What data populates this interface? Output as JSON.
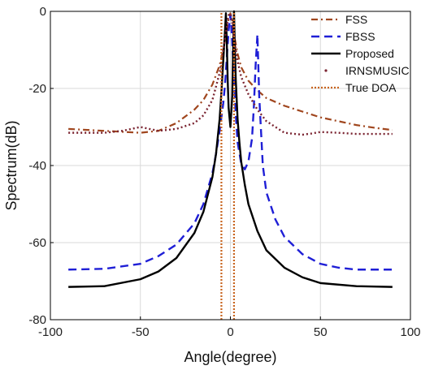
{
  "chart_data": {
    "type": "line",
    "xlabel": "Angle(degree)",
    "ylabel": "Spectrum(dB)",
    "xlim": [
      -100,
      100
    ],
    "ylim": [
      -80,
      0
    ],
    "xticks": [
      -100,
      -50,
      0,
      50,
      100
    ],
    "yticks": [
      0,
      -20,
      -40,
      -60,
      -80
    ],
    "xtick_labels": [
      "-100",
      "-50",
      "0",
      "50",
      "100"
    ],
    "ytick_labels": [
      "0",
      "-20",
      "-40",
      "-60",
      "-80"
    ],
    "grid": true,
    "legend_position": "top-right",
    "series": [
      {
        "name": "FSS",
        "color": "#a0461e",
        "style": "dashdot",
        "x": [
          -90,
          -70,
          -50,
          -40,
          -30,
          -20,
          -15,
          -10,
          -6,
          -4,
          -2,
          -1,
          0,
          1,
          2,
          4,
          6,
          10,
          15,
          20,
          30,
          40,
          50,
          60,
          70,
          80,
          90
        ],
        "y": [
          -30.5,
          -31.0,
          -31.5,
          -31.0,
          -29.0,
          -25.5,
          -23.0,
          -19.0,
          -14.0,
          -10.0,
          -5.0,
          -2.0,
          -0.5,
          -2.5,
          -6.0,
          -11.0,
          -14.5,
          -18.0,
          -20.5,
          -22.5,
          -24.5,
          -26.0,
          -27.5,
          -28.5,
          -29.5,
          -30.2,
          -30.8
        ]
      },
      {
        "name": "FBSS",
        "color": "#1f1fd6",
        "style": "dashed",
        "x": [
          -90,
          -70,
          -50,
          -40,
          -30,
          -20,
          -15,
          -10,
          -8,
          -6,
          -4,
          -3,
          -2,
          -1,
          0,
          0.5,
          1,
          2,
          3,
          4,
          6,
          8,
          10,
          12,
          13,
          14,
          15,
          16,
          18,
          20,
          25,
          30,
          40,
          50,
          60,
          70,
          80,
          90
        ],
        "y": [
          -67.0,
          -66.8,
          -65.5,
          -63.5,
          -60.5,
          -55.0,
          -50.0,
          -42.0,
          -37.0,
          -31.0,
          -24.0,
          -19.0,
          -12.0,
          -5.0,
          -1.0,
          -4.0,
          -8.0,
          -18.0,
          -27.0,
          -34.0,
          -39.5,
          -41.0,
          -39.0,
          -33.0,
          -25.0,
          -14.0,
          -6.0,
          -22.0,
          -40.0,
          -47.0,
          -54.0,
          -58.5,
          -63.0,
          -65.5,
          -66.5,
          -67.0,
          -67.0,
          -67.0
        ]
      },
      {
        "name": "Proposed",
        "color": "#000000",
        "style": "solid",
        "x": [
          -90,
          -70,
          -50,
          -40,
          -30,
          -20,
          -15,
          -10,
          -8,
          -6,
          -5,
          -4,
          -3,
          -2.5,
          -2,
          -1.5,
          -1,
          0,
          1,
          1.5,
          2,
          2.5,
          3,
          4,
          5,
          6,
          8,
          10,
          15,
          20,
          30,
          40,
          50,
          70,
          90
        ],
        "y": [
          -71.5,
          -71.3,
          -69.5,
          -67.5,
          -64.0,
          -57.5,
          -52.0,
          -43.0,
          -37.0,
          -28.0,
          -21.0,
          -13.0,
          -5.0,
          -0.5,
          -8.0,
          -18.0,
          -25.0,
          -30.0,
          -22.0,
          -10.0,
          0,
          -10.0,
          -18.0,
          -28.0,
          -34.0,
          -39.0,
          -45.0,
          -50.0,
          -57.0,
          -62.0,
          -66.5,
          -69.0,
          -70.5,
          -71.3,
          -71.5
        ]
      },
      {
        "name": "IRNSMUSIC",
        "color": "#7a2330",
        "style": "dotted",
        "x": [
          -90,
          -70,
          -60,
          -55,
          -50,
          -45,
          -40,
          -30,
          -20,
          -15,
          -10,
          -6,
          -4,
          -2,
          -1,
          0,
          1,
          2,
          4,
          6,
          10,
          15,
          20,
          30,
          40,
          45,
          50,
          60,
          70,
          80,
          90
        ],
        "y": [
          -31.5,
          -31.5,
          -31.0,
          -30.5,
          -30.0,
          -30.5,
          -31.0,
          -30.5,
          -29.0,
          -27.0,
          -23.0,
          -16.0,
          -10.0,
          -4.0,
          -1.0,
          -0.5,
          -3.0,
          -7.0,
          -13.0,
          -17.0,
          -21.5,
          -25.5,
          -28.5,
          -31.5,
          -32.0,
          -31.7,
          -31.3,
          -31.5,
          -31.8,
          -31.8,
          -31.8
        ]
      },
      {
        "name": "True DOA",
        "color": "#c8641e",
        "style": "dotted-vertical",
        "x": [
          -5,
          2
        ],
        "y": [
          -80,
          0
        ]
      }
    ]
  }
}
